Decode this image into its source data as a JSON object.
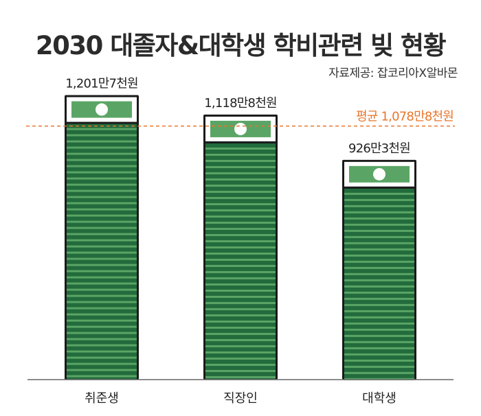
{
  "title": "2030 대졸자&대학생 학비관련 빚 현황",
  "source": "자료제공: 잡코리아X알바몬",
  "colors": {
    "bar_dark": "#226b3c",
    "bar_light": "#5aa565",
    "outline": "#1a1a1a",
    "average_line": "#e8762b"
  },
  "chart_data": {
    "type": "bar",
    "categories": [
      "취준생",
      "직장인",
      "대학생"
    ],
    "values": [
      1201.7,
      1118.8,
      926.3
    ],
    "value_labels": [
      "1,201만7천원",
      "1,118만8천원",
      "926만3천원"
    ],
    "unit": "만원",
    "average": 1078.8,
    "average_label": "평균 1,078만8천원",
    "ylim": [
      0,
      1300
    ],
    "grid": false,
    "legend": "none"
  }
}
